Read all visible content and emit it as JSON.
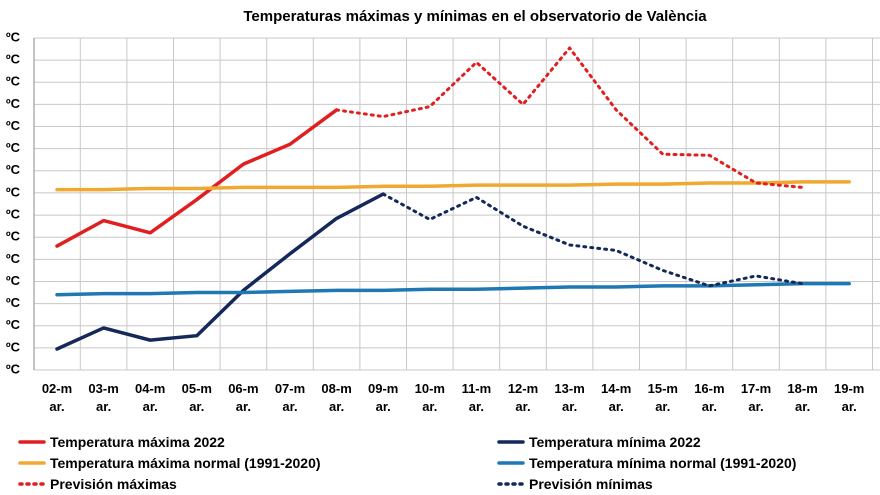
{
  "chart_data": {
    "type": "line",
    "title": "Temperaturas máximas y mínimas en el observatorio de València",
    "categories": [
      "02-mar.",
      "03-mar.",
      "04-mar.",
      "05-mar.",
      "06-mar.",
      "07-mar.",
      "08-mar.",
      "09-mar.",
      "10-mar.",
      "11-mar.",
      "12-mar.",
      "13-mar.",
      "14-mar.",
      "15-mar.",
      "16-mar.",
      "17-mar.",
      "18-mar.",
      "19-mar."
    ],
    "ylim": [
      2,
      32
    ],
    "yticks": [
      {
        "value": 2,
        "label": "ºC"
      },
      {
        "value": 4,
        "label": "ºC"
      },
      {
        "value": 6,
        "label": "ºC"
      },
      {
        "value": 8,
        "label": "ºC"
      },
      {
        "value": 10,
        "label": "ºC"
      },
      {
        "value": 12,
        "label": "ºC"
      },
      {
        "value": 14,
        "label": "ºC"
      },
      {
        "value": 16,
        "label": "ºC"
      },
      {
        "value": 18,
        "label": "ºC"
      },
      {
        "value": 20,
        "label": "ºC"
      },
      {
        "value": 22,
        "label": "ºC"
      },
      {
        "value": 24,
        "label": "ºC"
      },
      {
        "value": 26,
        "label": "ºC"
      },
      {
        "value": 28,
        "label": "ºC"
      },
      {
        "value": 30,
        "label": "ºC"
      },
      {
        "value": 32,
        "label": "ºC"
      }
    ],
    "grid": true,
    "series": [
      {
        "name": "Temperatura máxima 2022",
        "color": "#e02020",
        "style": "solid",
        "values": [
          13.2,
          15.5,
          14.4,
          17.4,
          20.6,
          22.4,
          25.5,
          null,
          null,
          null,
          null,
          null,
          null,
          null,
          null,
          null,
          null,
          null
        ]
      },
      {
        "name": "Temperatura mínima 2022",
        "color": "#14285a",
        "style": "solid",
        "values": [
          3.9,
          5.8,
          4.7,
          5.1,
          9.2,
          12.5,
          15.7,
          17.9,
          null,
          null,
          null,
          null,
          null,
          null,
          null,
          null,
          null,
          null
        ]
      },
      {
        "name": "Temperatura máxima normal (1991-2020)",
        "color": "#f0a830",
        "style": "solid",
        "values": [
          18.3,
          18.3,
          18.4,
          18.4,
          18.5,
          18.5,
          18.5,
          18.6,
          18.6,
          18.7,
          18.7,
          18.7,
          18.8,
          18.8,
          18.9,
          18.9,
          19.0,
          19.0
        ]
      },
      {
        "name": "Temperatura mínima normal (1991-2020)",
        "color": "#1f78b4",
        "style": "solid",
        "values": [
          8.8,
          8.9,
          8.9,
          9.0,
          9.0,
          9.1,
          9.2,
          9.2,
          9.3,
          9.3,
          9.4,
          9.5,
          9.5,
          9.6,
          9.6,
          9.7,
          9.8,
          9.8
        ]
      },
      {
        "name": "Previsión máximas",
        "color": "#e02020",
        "style": "dotted",
        "values": [
          null,
          null,
          null,
          null,
          null,
          null,
          25.5,
          24.9,
          25.8,
          29.8,
          26.0,
          31.1,
          25.5,
          21.5,
          21.4,
          18.9,
          18.5,
          null
        ]
      },
      {
        "name": "Previsión mínimas",
        "color": "#14285a",
        "style": "dotted",
        "values": [
          null,
          null,
          null,
          null,
          null,
          null,
          null,
          17.9,
          15.6,
          17.6,
          15.0,
          13.3,
          12.8,
          11.0,
          9.6,
          10.5,
          9.8,
          null
        ]
      }
    ]
  }
}
